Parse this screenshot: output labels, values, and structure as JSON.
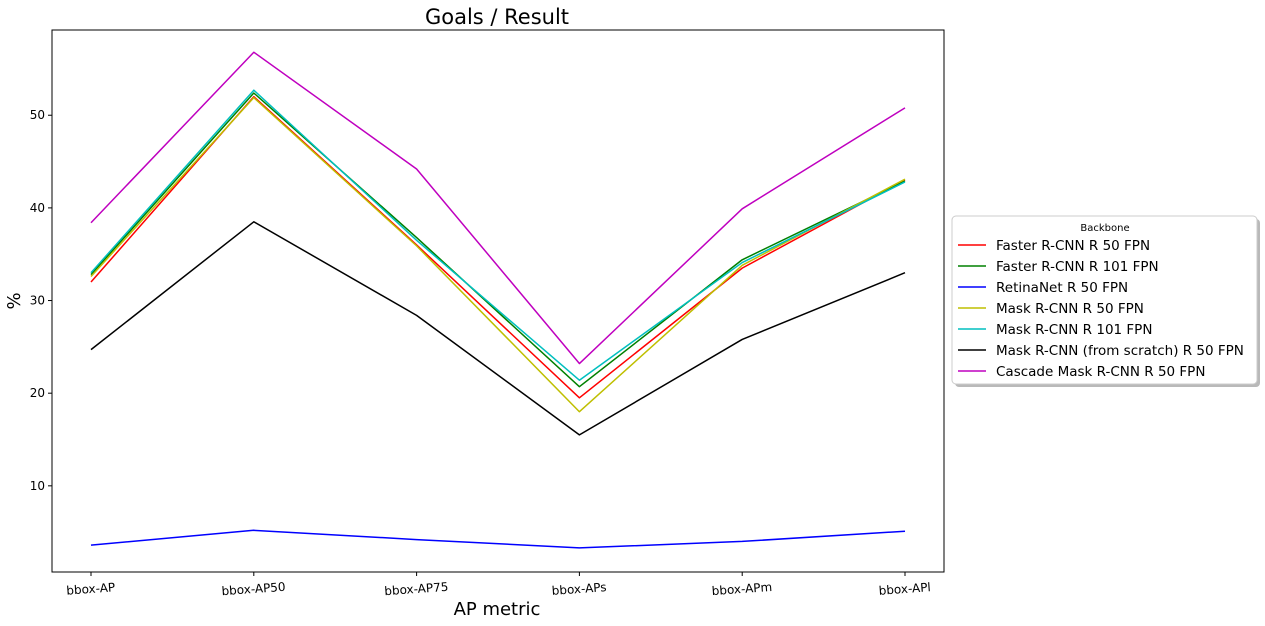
{
  "chart_data": {
    "type": "line",
    "title": "Goals / Result",
    "xlabel": "AP metric",
    "ylabel": "%",
    "categories": [
      "bbox-AP",
      "bbox-AP50",
      "bbox-AP75",
      "bbox-APs",
      "bbox-APm",
      "bbox-APl"
    ],
    "ylim": [
      0.7,
      59.2
    ],
    "yticks": [
      10,
      20,
      30,
      40,
      50
    ],
    "grid": false,
    "legend": {
      "title": "Backbone",
      "placement": "center-right-outside"
    },
    "series": [
      {
        "name": "Faster R-CNN R 50 FPN",
        "color": "#ff0000",
        "values": [
          32.0,
          52.0,
          36.0,
          19.5,
          33.5,
          43.0
        ]
      },
      {
        "name": "Faster R-CNN R 101 FPN",
        "color": "#008000",
        "values": [
          32.8,
          52.4,
          36.8,
          20.7,
          34.4,
          42.9
        ]
      },
      {
        "name": "RetinaNet R 50 FPN",
        "color": "#0000ff",
        "values": [
          3.6,
          5.2,
          4.2,
          3.3,
          4.0,
          5.1
        ]
      },
      {
        "name": "Mask R-CNN R 50 FPN",
        "color": "#bfbf00",
        "values": [
          32.6,
          51.9,
          35.9,
          18.0,
          33.8,
          43.1
        ]
      },
      {
        "name": "Mask R-CNN R 101 FPN",
        "color": "#00bfbf",
        "values": [
          33.0,
          52.7,
          36.5,
          21.4,
          34.1,
          42.8
        ]
      },
      {
        "name": "Mask R-CNN (from scratch) R 50 FPN",
        "color": "#000000",
        "values": [
          24.7,
          38.5,
          28.4,
          15.5,
          25.8,
          33.0
        ]
      },
      {
        "name": "Cascade Mask R-CNN R 50 FPN",
        "color": "#bf00bf",
        "values": [
          38.4,
          56.8,
          44.2,
          23.2,
          39.9,
          50.8
        ]
      }
    ]
  }
}
